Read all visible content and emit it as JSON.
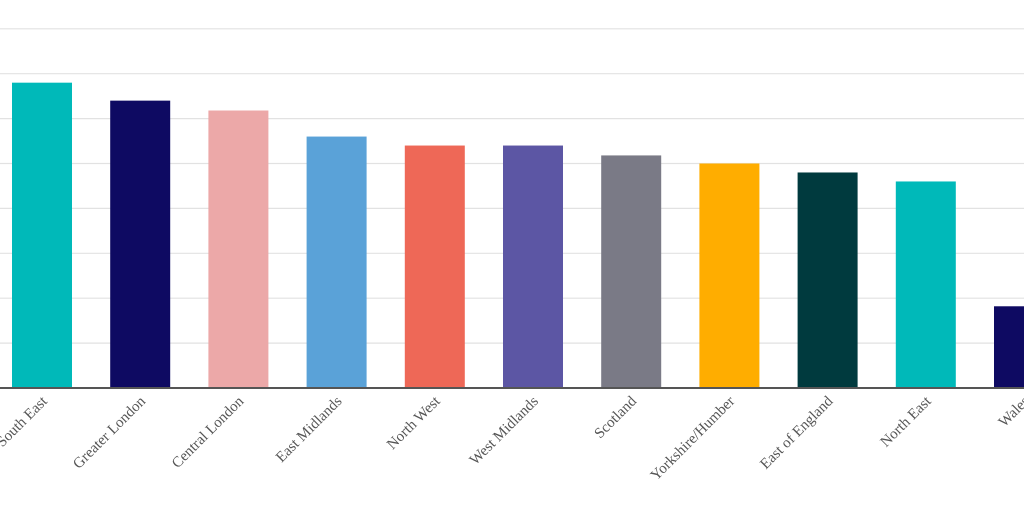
{
  "chart_data": {
    "type": "bar",
    "title": "",
    "xlabel": "",
    "ylabel": "",
    "ylim": [
      0,
      8
    ],
    "grid": true,
    "legend": "none",
    "categories": [
      "South East",
      "Greater London",
      "Central London",
      "East Midlands",
      "North West",
      "West Midlands",
      "Scotland",
      "Yorkshire/Humber",
      "East of England",
      "North East",
      "Wales"
    ],
    "values": [
      6.8,
      6.4,
      6.18,
      5.6,
      5.4,
      5.4,
      5.18,
      5.0,
      4.8,
      4.6,
      1.82
    ],
    "colors": [
      "#00B9B9",
      "#0E0A62",
      "#ECA8A8",
      "#5AA2D8",
      "#EE6857",
      "#5C56A4",
      "#7A7A86",
      "#FFAD00",
      "#003A3E",
      "#00B9B9",
      "#0E0A62"
    ]
  }
}
